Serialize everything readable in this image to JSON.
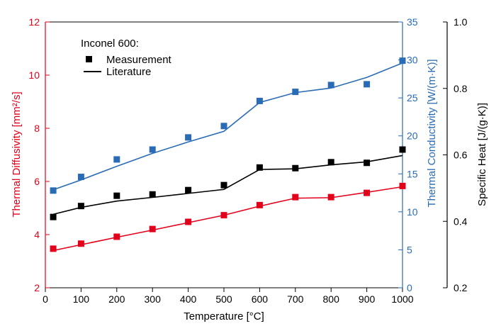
{
  "chart_data": {
    "type": "scatter",
    "legend_title": "Inconel 600:",
    "legend": {
      "measurement": "Measurement",
      "literature": "Literature",
      "placement": "top-left"
    },
    "xlabel": "Temperature [°C]",
    "xlim": [
      0,
      1000
    ],
    "xticks": [
      "0",
      "100",
      "200",
      "300",
      "400",
      "500",
      "600",
      "700",
      "800",
      "900",
      "1000"
    ],
    "axes": {
      "diffusivity": {
        "label": "Thermal Diffusivity [mm²/s]",
        "ylim": [
          2,
          12
        ],
        "ticks": [
          "2",
          "4",
          "6",
          "8",
          "10",
          "12"
        ],
        "color": "#e3001b"
      },
      "conductivity": {
        "label": "Thermal Conductivity [W/(m·K)]",
        "ylim": [
          0,
          35
        ],
        "ticks": [
          "0",
          "5",
          "10",
          "15",
          "20",
          "25",
          "30",
          "35"
        ],
        "color": "#2a6bb5"
      },
      "specific_heat": {
        "label": "Specific Heat [J/(g·K)]",
        "ylim": [
          0.2,
          1.0
        ],
        "ticks": [
          "0.2",
          "0.4",
          "0.6",
          "0.8",
          "1.0"
        ],
        "color": "#000000"
      }
    },
    "x": [
      22,
      100,
      200,
      300,
      400,
      500,
      600,
      700,
      800,
      900,
      1000
    ],
    "series": [
      {
        "name": "Thermal Diffusivity",
        "axis": "diffusivity",
        "color": "#e3001b",
        "measurement": [
          3.47,
          3.66,
          3.92,
          4.21,
          4.48,
          4.73,
          5.11,
          5.41,
          5.41,
          5.57,
          5.83
        ],
        "literature": [
          3.4,
          3.62,
          3.9,
          4.17,
          4.45,
          4.73,
          5.07,
          5.37,
          5.39,
          5.59,
          5.8
        ]
      },
      {
        "name": "Thermal Conductivity",
        "axis": "conductivity",
        "color": "#2a6bb5",
        "measurement": [
          12.8,
          14.6,
          16.9,
          18.2,
          19.8,
          21.3,
          24.6,
          25.8,
          26.7,
          26.8,
          29.9
        ],
        "literature": [
          12.9,
          14.2,
          16.0,
          17.7,
          19.2,
          20.6,
          24.4,
          25.7,
          26.3,
          27.7,
          29.6
        ]
      },
      {
        "name": "Specific Heat",
        "axis": "specific_heat",
        "color": "#000000",
        "measurement": [
          0.413,
          0.446,
          0.477,
          0.481,
          0.494,
          0.509,
          0.562,
          0.56,
          0.578,
          0.576,
          0.616
        ],
        "literature": [
          0.421,
          0.442,
          0.461,
          0.472,
          0.484,
          0.496,
          0.556,
          0.558,
          0.57,
          0.579,
          0.598
        ]
      }
    ]
  }
}
